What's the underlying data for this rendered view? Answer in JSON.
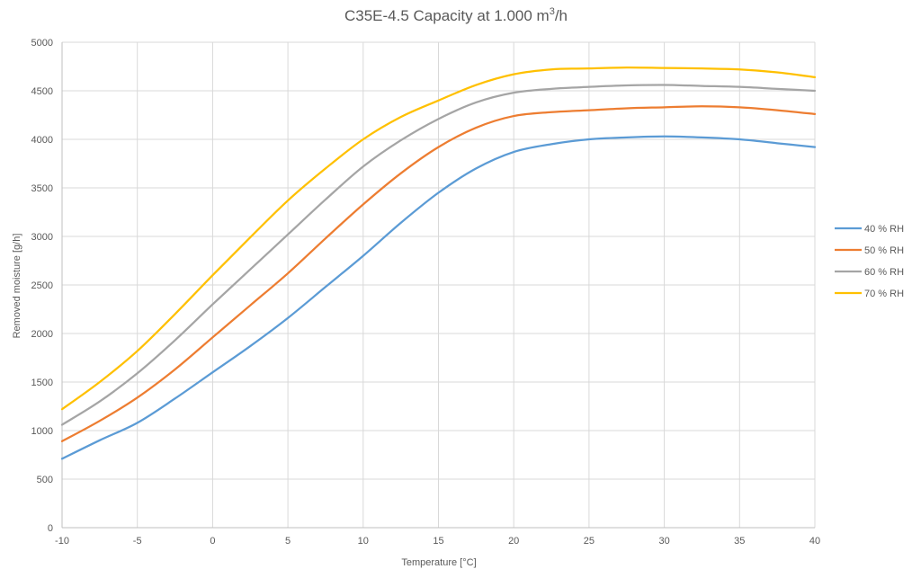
{
  "chart_data": {
    "type": "line",
    "title": "C35E-4.5 Capacity at 1.000 m³/h",
    "title_main": "C35E-4.5 Capacity at 1.000 m",
    "title_sup": "3",
    "title_tail": "/h",
    "xlabel": "Temperature [°C]",
    "ylabel": "Removed moisture [g/h]",
    "xlim": [
      -10,
      40
    ],
    "ylim": [
      0,
      5000
    ],
    "x_ticks": [
      -10,
      -5,
      0,
      5,
      10,
      15,
      20,
      25,
      30,
      35,
      40
    ],
    "y_ticks": [
      0,
      500,
      1000,
      1500,
      2000,
      2500,
      3000,
      3500,
      4000,
      4500,
      5000
    ],
    "grid": true,
    "legend_position": "right",
    "x": [
      -10,
      -7.5,
      -5,
      -2.5,
      0,
      2.5,
      5,
      7.5,
      10,
      12.5,
      15,
      17.5,
      20,
      22.5,
      25,
      27.5,
      30,
      32.5,
      35,
      37.5,
      40
    ],
    "series": [
      {
        "name": "40 % RH",
        "color": "#5B9BD5",
        "values": [
          710,
          900,
          1080,
          1330,
          1600,
          1870,
          2160,
          2480,
          2800,
          3140,
          3450,
          3700,
          3870,
          3950,
          4000,
          4020,
          4030,
          4020,
          4000,
          3960,
          3920
        ]
      },
      {
        "name": "50 % RH",
        "color": "#ED7D31",
        "values": [
          890,
          1100,
          1340,
          1630,
          1960,
          2290,
          2620,
          2980,
          3330,
          3650,
          3920,
          4120,
          4240,
          4280,
          4300,
          4320,
          4330,
          4340,
          4330,
          4300,
          4260
        ]
      },
      {
        "name": "60 % RH",
        "color": "#A5A5A5",
        "values": [
          1060,
          1300,
          1590,
          1930,
          2300,
          2660,
          3020,
          3380,
          3720,
          3990,
          4210,
          4380,
          4480,
          4520,
          4540,
          4555,
          4560,
          4550,
          4540,
          4520,
          4500
        ]
      },
      {
        "name": "70 % RH",
        "color": "#FFC000",
        "values": [
          1220,
          1500,
          1820,
          2200,
          2600,
          2990,
          3370,
          3700,
          4000,
          4230,
          4400,
          4560,
          4670,
          4720,
          4730,
          4740,
          4735,
          4730,
          4720,
          4690,
          4640
        ]
      }
    ]
  }
}
